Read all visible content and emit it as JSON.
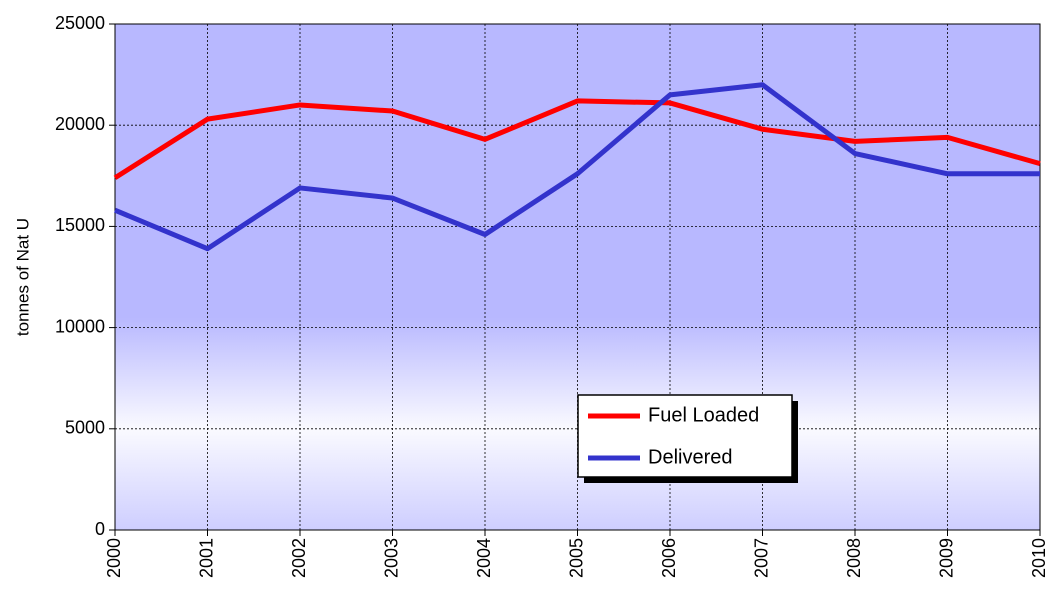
{
  "chart_data": {
    "type": "line",
    "y_label": "tonnes of Nat U",
    "x": [
      2000,
      2001,
      2002,
      2003,
      2004,
      2005,
      2006,
      2007,
      2008,
      2009,
      2010
    ],
    "series": [
      {
        "name": "Fuel Loaded",
        "color": "#ff0000",
        "values": [
          17400,
          20300,
          21000,
          20700,
          19300,
          21200,
          21100,
          19800,
          19200,
          19400,
          18100
        ]
      },
      {
        "name": "Delivered",
        "color": "#3333cc",
        "values": [
          15800,
          13900,
          16900,
          16400,
          14600,
          17600,
          21500,
          22000,
          18600,
          17600,
          17600
        ]
      }
    ],
    "xlim": [
      2000,
      2010
    ],
    "xticks": [
      2000,
      2001,
      2002,
      2003,
      2004,
      2005,
      2006,
      2007,
      2008,
      2009,
      2010
    ],
    "ylim": [
      0,
      25000
    ],
    "yticks": [
      0,
      5000,
      10000,
      15000,
      20000,
      25000
    ],
    "grid": true
  }
}
